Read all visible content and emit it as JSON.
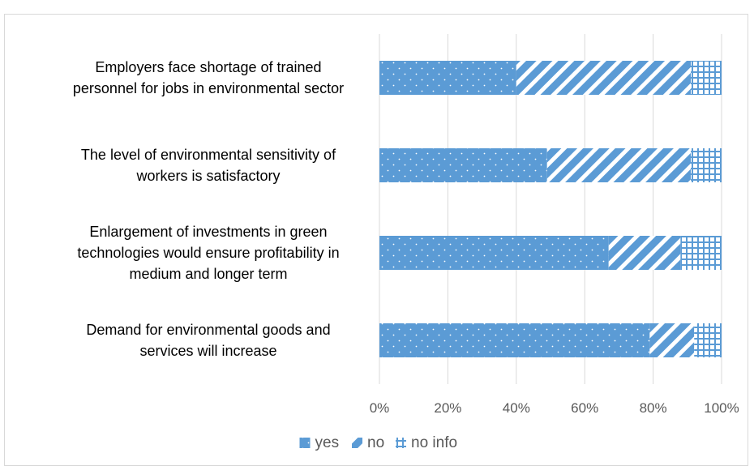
{
  "chart_data": {
    "type": "bar",
    "orientation": "horizontal",
    "stacked": "percent",
    "categories": [
      "Employers face shortage of trained personnel for jobs in environmental sector",
      "The level of environmental sensitivity of workers is satisfactory",
      "Enlargement of investments in green technologies would ensure profitability in medium and longer term",
      "Demand for environmental goods and services  will increase"
    ],
    "category_lines": [
      [
        "Employers face shortage of trained",
        "personnel for jobs in environmental sector"
      ],
      [
        "The level of environmental sensitivity of",
        "workers is satisfactory"
      ],
      [
        "Enlargement of investments in green",
        "technologies would ensure profitability in",
        "medium and longer term"
      ],
      [
        "Demand for environmental goods and",
        "services  will increase"
      ]
    ],
    "series": [
      {
        "name": "yes",
        "values": [
          40,
          49,
          67,
          79
        ],
        "color": "#5b9bd5",
        "pattern": "dots"
      },
      {
        "name": "no",
        "values": [
          51,
          42,
          21,
          13
        ],
        "color": "#5b9bd5",
        "pattern": "diagonal-stripes"
      },
      {
        "name": "no info",
        "values": [
          9,
          9,
          12,
          8
        ],
        "color": "#5b9bd5",
        "pattern": "grid"
      }
    ],
    "xlim": [
      0,
      100
    ],
    "x_ticks": [
      "0%",
      "20%",
      "40%",
      "60%",
      "80%",
      "100%"
    ],
    "grid": true,
    "legend_position": "bottom",
    "title": "",
    "xlabel": "",
    "ylabel": ""
  }
}
